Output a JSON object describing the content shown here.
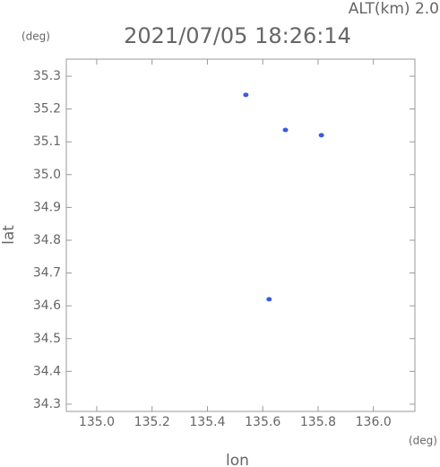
{
  "chart_data": {
    "type": "scatter",
    "title": "2021/07/05 18:26:14",
    "subtitle": "ALT(km) 2.0",
    "y_unit": "(deg)",
    "x_unit": "(deg)",
    "x_label": "lon",
    "y_label": "lat",
    "x": [
      135.539,
      135.682,
      135.812,
      135.623
    ],
    "series": [
      {
        "color": "#3a5be0",
        "values": [
          35.243,
          35.136,
          35.12,
          34.62
        ]
      }
    ],
    "xlim": [
      134.89,
      136.15
    ],
    "xticks": [
      {
        "value": 135.0,
        "label": "135.0"
      },
      135.2,
      135.4,
      135.6,
      135.8,
      {
        "value": 136.0,
        "label": "136.0"
      }
    ],
    "ylim": [
      34.278,
      35.352
    ],
    "yticks": [
      34.3,
      34.4,
      34.5,
      34.6,
      34.7,
      34.8,
      34.9,
      {
        "value": 35.0,
        "label": "35.0"
      },
      35.1,
      35.2,
      35.3
    ]
  }
}
